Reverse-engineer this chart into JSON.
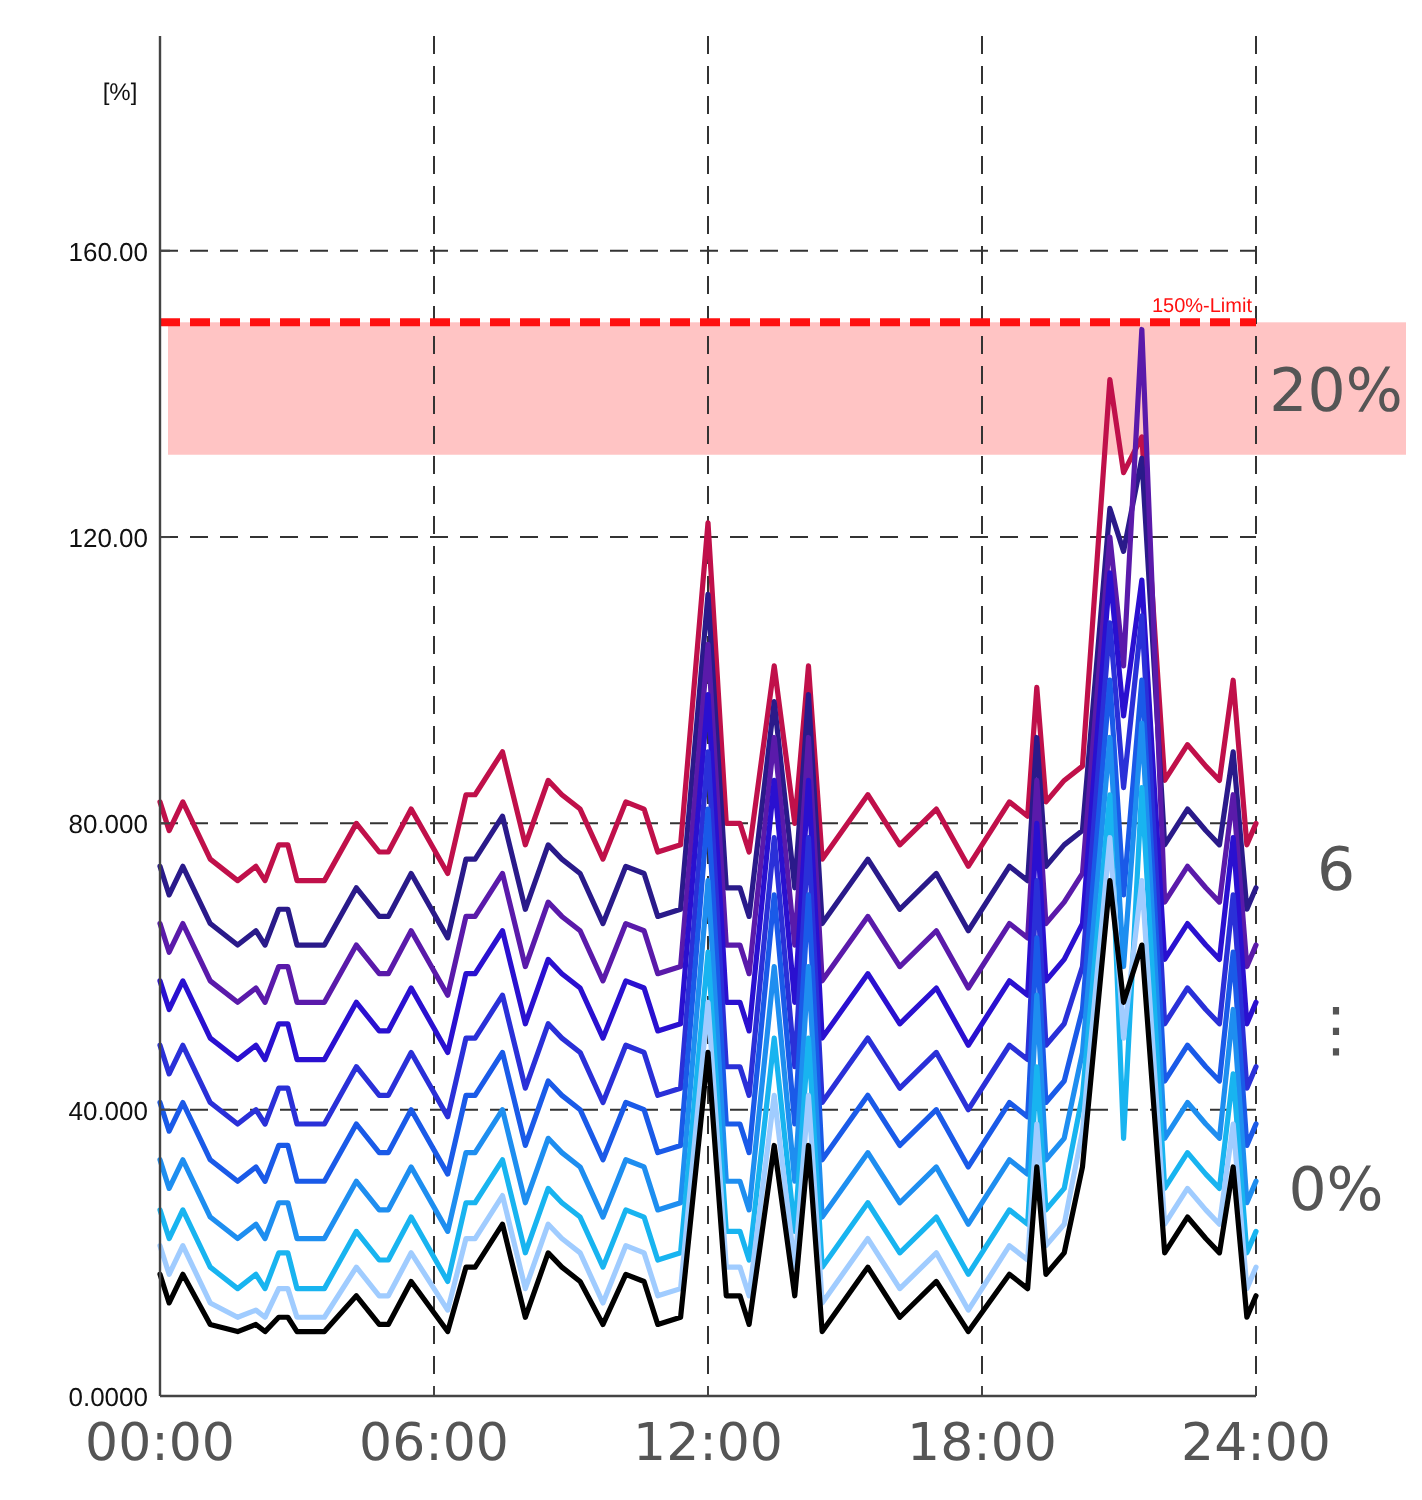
{
  "chart_data": {
    "type": "line",
    "ylabel": "[%]",
    "x": [
      0,
      0.2,
      0.5,
      1.1,
      1.7,
      2.1,
      2.3,
      2.6,
      2.8,
      3.0,
      3.6,
      4.3,
      4.8,
      5.0,
      5.5,
      6.3,
      6.7,
      6.9,
      7.5,
      8.0,
      8.5,
      8.8,
      9.2,
      9.7,
      10.2,
      10.6,
      10.9,
      11.4,
      12.0,
      12.4,
      12.7,
      12.9,
      13.45,
      13.9,
      14.2,
      14.5,
      15.5,
      16.2,
      17.0,
      17.7,
      18.6,
      19.0,
      19.2,
      19.4,
      19.8,
      20.2,
      20.8,
      21.1,
      21.5,
      22.0,
      22.5,
      22.9,
      23.2,
      23.5,
      23.8,
      24.0
    ],
    "xlim": [
      0,
      24
    ],
    "xticks": [
      {
        "value": 0,
        "label": "00:00"
      },
      {
        "value": 6,
        "label": "06:00"
      },
      {
        "value": 12,
        "label": "12:00"
      },
      {
        "value": 18,
        "label": "18:00"
      },
      {
        "value": 24,
        "label": "24:00"
      }
    ],
    "ylim": [
      0,
      190
    ],
    "yticks": [
      {
        "value": 0,
        "label": "0.0000"
      },
      {
        "value": 40,
        "label": "40.000"
      },
      {
        "value": 80,
        "label": "80.000"
      },
      {
        "value": 120,
        "label": "120.00"
      },
      {
        "value": 160,
        "label": "160.00"
      }
    ],
    "grid": true,
    "line_style": "solid",
    "series": [
      {
        "color": "#c0104a",
        "values": [
          83,
          79,
          83,
          75,
          72,
          74,
          72,
          77,
          77,
          72,
          72,
          80,
          76,
          76,
          82,
          73,
          84,
          84,
          90,
          77,
          86,
          84,
          82,
          75,
          83,
          82,
          76,
          77,
          122,
          80,
          80,
          76,
          102,
          80,
          102,
          75,
          84,
          77,
          82,
          74,
          83,
          81,
          99,
          83,
          86,
          88,
          142,
          129,
          134,
          86,
          91,
          88,
          86,
          100,
          77,
          80
        ]
      },
      {
        "color": "#2a1a8a",
        "values": [
          74,
          70,
          74,
          66,
          63,
          65,
          63,
          68,
          68,
          63,
          63,
          71,
          67,
          67,
          73,
          64,
          75,
          75,
          81,
          68,
          77,
          75,
          73,
          66,
          74,
          73,
          67,
          68,
          112,
          71,
          71,
          67,
          97,
          71,
          98,
          66,
          75,
          68,
          73,
          65,
          74,
          72,
          92,
          74,
          77,
          79,
          124,
          118,
          131,
          77,
          82,
          79,
          77,
          90,
          68,
          71
        ]
      },
      {
        "color": "#5a1aaa",
        "values": [
          66,
          62,
          66,
          58,
          55,
          57,
          55,
          60,
          60,
          55,
          55,
          63,
          59,
          59,
          65,
          56,
          67,
          67,
          73,
          60,
          69,
          67,
          65,
          58,
          66,
          65,
          59,
          60,
          105,
          63,
          63,
          59,
          92,
          63,
          92,
          58,
          67,
          60,
          65,
          57,
          66,
          64,
          86,
          66,
          69,
          73,
          120,
          102,
          149,
          69,
          74,
          71,
          69,
          84,
          60,
          63
        ]
      },
      {
        "color": "#2a10d0",
        "values": [
          58,
          54,
          58,
          50,
          47,
          49,
          47,
          52,
          52,
          47,
          47,
          55,
          51,
          51,
          57,
          48,
          59,
          59,
          65,
          52,
          61,
          59,
          57,
          50,
          58,
          57,
          51,
          52,
          98,
          55,
          55,
          51,
          86,
          55,
          86,
          50,
          59,
          52,
          57,
          49,
          58,
          56,
          80,
          58,
          61,
          66,
          115,
          95,
          114,
          61,
          66,
          63,
          61,
          78,
          52,
          55
        ]
      },
      {
        "color": "#2a30d8",
        "values": [
          49,
          45,
          49,
          41,
          38,
          40,
          38,
          43,
          43,
          38,
          38,
          46,
          42,
          42,
          48,
          39,
          50,
          50,
          56,
          43,
          52,
          50,
          48,
          41,
          49,
          48,
          42,
          43,
          90,
          46,
          46,
          42,
          78,
          46,
          78,
          41,
          50,
          43,
          48,
          40,
          49,
          47,
          72,
          49,
          52,
          60,
          108,
          85,
          109,
          52,
          57,
          54,
          52,
          70,
          43,
          46
        ]
      },
      {
        "color": "#1a5ae8",
        "values": [
          41,
          37,
          41,
          33,
          30,
          32,
          30,
          35,
          35,
          30,
          30,
          38,
          34,
          34,
          40,
          31,
          42,
          42,
          48,
          35,
          44,
          42,
          40,
          33,
          41,
          40,
          34,
          35,
          82,
          38,
          38,
          34,
          70,
          38,
          70,
          33,
          42,
          35,
          40,
          32,
          41,
          39,
          64,
          41,
          44,
          54,
          100,
          70,
          100,
          44,
          49,
          46,
          44,
          62,
          35,
          38
        ]
      },
      {
        "color": "#1e8ef0",
        "values": [
          33,
          29,
          33,
          25,
          22,
          24,
          22,
          27,
          27,
          22,
          22,
          30,
          26,
          26,
          32,
          23,
          34,
          34,
          40,
          27,
          36,
          34,
          32,
          25,
          33,
          32,
          26,
          27,
          72,
          30,
          30,
          26,
          60,
          30,
          60,
          25,
          34,
          27,
          32,
          24,
          33,
          31,
          56,
          33,
          36,
          48,
          92,
          60,
          94,
          36,
          41,
          38,
          36,
          54,
          27,
          30
        ]
      },
      {
        "color": "#18b4f0",
        "values": [
          26,
          22,
          26,
          18,
          15,
          17,
          15,
          20,
          20,
          15,
          15,
          23,
          19,
          19,
          25,
          16,
          27,
          27,
          33,
          20,
          29,
          27,
          25,
          18,
          26,
          25,
          19,
          20,
          62,
          23,
          23,
          19,
          50,
          23,
          50,
          18,
          27,
          20,
          25,
          17,
          26,
          24,
          46,
          26,
          29,
          42,
          84,
          36,
          85,
          29,
          34,
          31,
          29,
          45,
          20,
          23
        ]
      },
      {
        "color": "#a0ccff",
        "values": [
          21,
          17,
          21,
          13,
          11,
          12,
          11,
          15,
          15,
          11,
          11,
          18,
          14,
          14,
          20,
          12,
          22,
          22,
          28,
          15,
          24,
          22,
          20,
          13,
          21,
          20,
          14,
          15,
          55,
          18,
          18,
          14,
          42,
          18,
          42,
          13,
          22,
          15,
          20,
          12,
          21,
          19,
          38,
          21,
          24,
          37,
          78,
          50,
          72,
          24,
          29,
          26,
          24,
          38,
          15,
          18
        ]
      },
      {
        "color": "#000000",
        "values": [
          17,
          13,
          17,
          10,
          9,
          10,
          9,
          11,
          11,
          9,
          9,
          14,
          10,
          10,
          16,
          9,
          18,
          18,
          24,
          11,
          20,
          18,
          16,
          10,
          17,
          16,
          10,
          11,
          48,
          14,
          14,
          10,
          35,
          14,
          35,
          9,
          18,
          11,
          16,
          9,
          17,
          15,
          32,
          17,
          20,
          32,
          72,
          55,
          63,
          20,
          25,
          22,
          20,
          32,
          11,
          14
        ]
      }
    ],
    "ref_lines": [
      {
        "axis": "y",
        "value": 150,
        "label": "150%-Limit",
        "color": "#ff1010",
        "line_style": "dashed"
      }
    ],
    "bands": [
      {
        "axis": "y",
        "from": 131.5,
        "to": 150,
        "label": "20%",
        "color": "#ffc4c4"
      }
    ],
    "annotations": [
      "6",
      "⋮",
      "0%"
    ]
  }
}
